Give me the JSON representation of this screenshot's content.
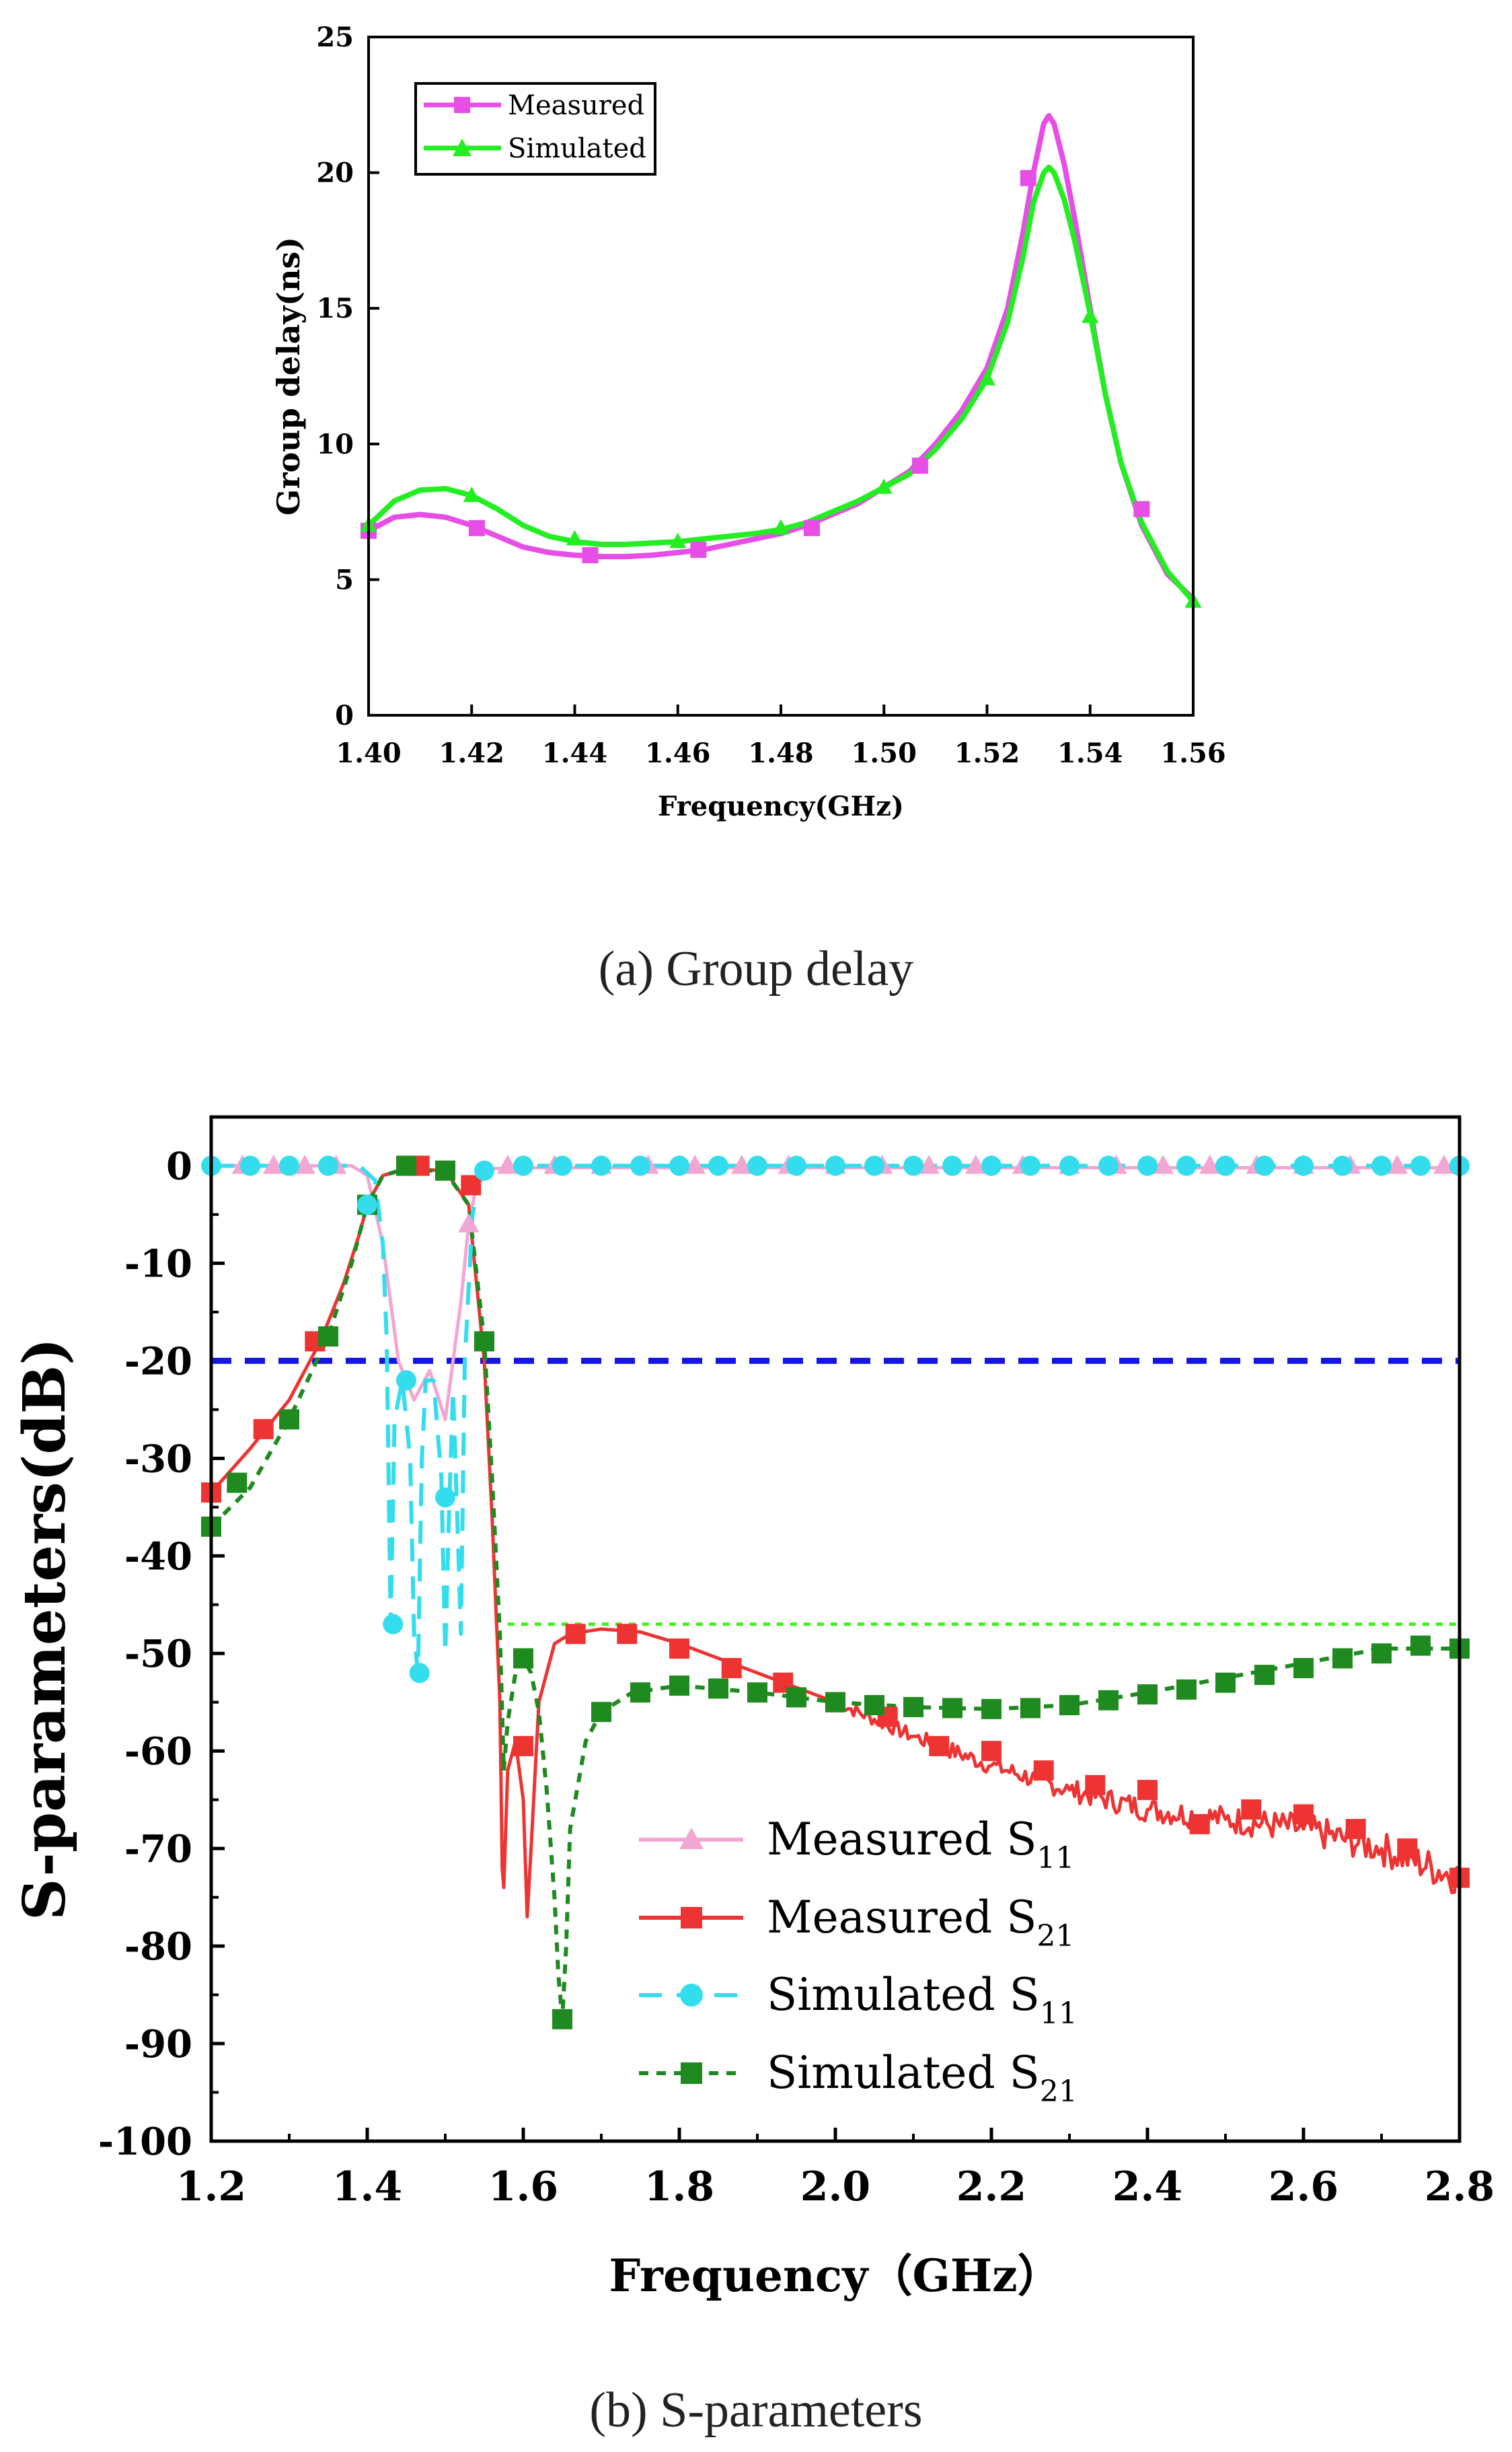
{
  "figure": {
    "caption_a": "(a) Group delay",
    "caption_b": "(b)  S-parameters"
  },
  "chart_data": [
    {
      "type": "line",
      "title": "",
      "xlabel": "Frequency(GHz)",
      "ylabel": "Group delay(ns)",
      "xlim": [
        1.4,
        1.56
      ],
      "ylim": [
        0,
        25
      ],
      "xticks": [
        "1.40",
        "1.42",
        "1.44",
        "1.46",
        "1.48",
        "1.50",
        "1.52",
        "1.54",
        "1.56"
      ],
      "yticks": [
        "0",
        "5",
        "10",
        "15",
        "20",
        "25"
      ],
      "legend_position": "top-left",
      "grid": false,
      "series": [
        {
          "name": "Measured",
          "color": "#e64ee6",
          "marker": "square",
          "x": [
            1.4,
            1.405,
            1.41,
            1.415,
            1.42,
            1.425,
            1.43,
            1.435,
            1.44,
            1.445,
            1.45,
            1.455,
            1.46,
            1.465,
            1.47,
            1.475,
            1.48,
            1.485,
            1.49,
            1.495,
            1.5,
            1.505,
            1.51,
            1.515,
            1.52,
            1.524,
            1.527,
            1.529,
            1.531,
            1.532,
            1.533,
            1.535,
            1.537,
            1.54,
            1.543,
            1.546,
            1.55,
            1.555,
            1.56
          ],
          "values": [
            6.8,
            7.3,
            7.4,
            7.3,
            7.0,
            6.6,
            6.2,
            6.0,
            5.9,
            5.85,
            5.85,
            5.9,
            6.0,
            6.1,
            6.3,
            6.5,
            6.7,
            7.0,
            7.4,
            7.8,
            8.4,
            9.0,
            10.0,
            11.2,
            12.8,
            15.0,
            17.8,
            20.0,
            21.8,
            22.1,
            21.8,
            20.3,
            18.3,
            15.0,
            11.8,
            9.3,
            7.0,
            5.2,
            4.3
          ],
          "markers": [
            [
              1.4,
              6.8
            ],
            [
              1.421,
              6.9
            ],
            [
              1.443,
              5.9
            ],
            [
              1.464,
              6.1
            ],
            [
              1.486,
              6.9
            ],
            [
              1.507,
              9.2
            ],
            [
              1.528,
              19.8
            ],
            [
              1.55,
              7.6
            ]
          ]
        },
        {
          "name": "Simulated",
          "color": "#22ee22",
          "marker": "triangle",
          "x": [
            1.4,
            1.405,
            1.41,
            1.415,
            1.42,
            1.425,
            1.43,
            1.435,
            1.44,
            1.445,
            1.45,
            1.455,
            1.46,
            1.465,
            1.47,
            1.475,
            1.48,
            1.485,
            1.49,
            1.495,
            1.5,
            1.505,
            1.51,
            1.515,
            1.52,
            1.524,
            1.527,
            1.529,
            1.531,
            1.532,
            1.533,
            1.535,
            1.537,
            1.54,
            1.543,
            1.546,
            1.55,
            1.555,
            1.56
          ],
          "values": [
            7.0,
            7.9,
            8.3,
            8.35,
            8.1,
            7.6,
            7.0,
            6.6,
            6.4,
            6.3,
            6.3,
            6.35,
            6.4,
            6.5,
            6.6,
            6.7,
            6.85,
            7.1,
            7.5,
            7.9,
            8.4,
            8.9,
            9.8,
            10.9,
            12.4,
            14.5,
            16.9,
            18.9,
            20.0,
            20.2,
            20.0,
            19.0,
            17.5,
            14.8,
            11.8,
            9.3,
            7.1,
            5.3,
            4.2
          ],
          "markers": [
            [
              1.4,
              7.0
            ],
            [
              1.42,
              8.1
            ],
            [
              1.44,
              6.5
            ],
            [
              1.46,
              6.4
            ],
            [
              1.48,
              6.9
            ],
            [
              1.5,
              8.4
            ],
            [
              1.52,
              12.4
            ],
            [
              1.54,
              14.7
            ],
            [
              1.56,
              4.2
            ]
          ]
        }
      ]
    },
    {
      "type": "line",
      "title": "",
      "xlabel": "Frequency（GHz）",
      "ylabel": "S-parameters(dB)",
      "xlim": [
        1.2,
        2.8
      ],
      "ylim": [
        -100,
        5
      ],
      "xticks": [
        "1.2",
        "1.4",
        "1.6",
        "1.8",
        "2.0",
        "2.2",
        "2.4",
        "2.6",
        "2.8"
      ],
      "yticks": [
        "0",
        "-10",
        "-20",
        "-30",
        "-40",
        "-50",
        "-60",
        "-70",
        "-80",
        "-90",
        "-100"
      ],
      "legend_position": "bottom-center",
      "grid": false,
      "reference_lines": [
        {
          "y": -20,
          "color": "#1414e6",
          "style": "dashed",
          "x_range": [
            1.2,
            2.8
          ]
        },
        {
          "y": -47,
          "color": "#44ee22",
          "style": "dotted",
          "x_range": [
            1.58,
            2.8
          ]
        }
      ],
      "series": [
        {
          "name": "Measured S",
          "subscript": "11",
          "color": "#f2a6d2",
          "marker": "triangle",
          "x": [
            1.2,
            1.38,
            1.4,
            1.42,
            1.44,
            1.46,
            1.48,
            1.5,
            1.52,
            1.53,
            1.54,
            1.56,
            1.6,
            2.8
          ],
          "values": [
            0,
            0,
            -1,
            -8,
            -20,
            -24,
            -21,
            -26,
            -14,
            -6,
            -2,
            -0.3,
            -0.2,
            -0.2
          ],
          "markers": [
            [
              1.24,
              0
            ],
            [
              1.28,
              0
            ],
            [
              1.32,
              0
            ],
            [
              1.36,
              0
            ],
            [
              1.53,
              -6
            ],
            [
              1.58,
              0
            ],
            [
              1.64,
              0
            ],
            [
              1.7,
              0
            ],
            [
              1.76,
              0
            ],
            [
              1.82,
              0
            ],
            [
              1.88,
              0
            ],
            [
              1.94,
              0
            ],
            [
              2.0,
              0
            ],
            [
              2.06,
              0
            ],
            [
              2.12,
              0
            ],
            [
              2.18,
              0
            ],
            [
              2.24,
              0
            ],
            [
              2.3,
              0
            ],
            [
              2.36,
              0
            ],
            [
              2.42,
              0
            ],
            [
              2.48,
              0
            ],
            [
              2.54,
              0
            ],
            [
              2.6,
              0
            ],
            [
              2.66,
              0
            ],
            [
              2.72,
              0
            ],
            [
              2.78,
              0
            ]
          ]
        },
        {
          "name": "Measured S",
          "subscript": "21",
          "color": "#ee3333",
          "marker": "square",
          "x": [
            1.2,
            1.25,
            1.3,
            1.34,
            1.37,
            1.39,
            1.4,
            1.42,
            1.45,
            1.5,
            1.53,
            1.55,
            1.56,
            1.57,
            1.573,
            1.575,
            1.58,
            1.59,
            1.6,
            1.605,
            1.61,
            1.62,
            1.64,
            1.66,
            1.7,
            1.75,
            1.8,
            1.9,
            2.0,
            2.1,
            2.2,
            2.3,
            2.4,
            2.5,
            2.6,
            2.7,
            2.8
          ],
          "values": [
            -33.5,
            -29,
            -24,
            -18,
            -12,
            -7,
            -4,
            -1,
            -0.3,
            -0.5,
            -4,
            -20,
            -36,
            -55,
            -72,
            -74,
            -62,
            -59,
            -65,
            -77,
            -70,
            -55,
            -49,
            -48,
            -47.5,
            -47.8,
            -49,
            -52,
            -55,
            -58.5,
            -61.5,
            -64,
            -66,
            -67,
            -68,
            -70,
            -73
          ],
          "noise_from": 2.0,
          "noise_amp": 1.6,
          "markers": [
            [
              1.2,
              -33.5
            ],
            [
              1.267,
              -27
            ],
            [
              1.333,
              -18
            ],
            [
              1.4,
              -4
            ],
            [
              1.467,
              0
            ],
            [
              1.533,
              -2
            ],
            [
              1.6,
              -59.5
            ],
            [
              1.667,
              -48
            ],
            [
              1.733,
              -48
            ],
            [
              1.8,
              -49.5
            ],
            [
              1.867,
              -51.5
            ],
            [
              1.933,
              -53
            ],
            [
              2.0,
              -55
            ],
            [
              2.067,
              -56.5
            ],
            [
              2.133,
              -59.5
            ],
            [
              2.2,
              -60
            ],
            [
              2.267,
              -62
            ],
            [
              2.333,
              -63.5
            ],
            [
              2.4,
              -64
            ],
            [
              2.467,
              -67.5
            ],
            [
              2.533,
              -66
            ],
            [
              2.6,
              -66.5
            ],
            [
              2.667,
              -68
            ],
            [
              2.733,
              -70
            ],
            [
              2.8,
              -73
            ]
          ]
        },
        {
          "name": "Simulated S",
          "subscript": "11",
          "color": "#33ddee",
          "marker": "circle",
          "x": [
            1.2,
            1.39,
            1.41,
            1.42,
            1.425,
            1.43,
            1.435,
            1.445,
            1.455,
            1.46,
            1.465,
            1.47,
            1.475,
            1.485,
            1.495,
            1.5,
            1.505,
            1.51,
            1.515,
            1.52,
            1.525,
            1.535,
            1.545,
            1.6,
            2.8
          ],
          "values": [
            0,
            0,
            -1.5,
            -8,
            -18,
            -47,
            -26,
            -22,
            -30,
            -48,
            -52,
            -30,
            -22,
            -22,
            -32,
            -50,
            -35,
            -23,
            -35,
            -48,
            -20,
            -5,
            -1,
            0,
            0
          ],
          "markers": [
            [
              1.2,
              0
            ],
            [
              1.25,
              0
            ],
            [
              1.3,
              0
            ],
            [
              1.35,
              0
            ],
            [
              1.4,
              -4
            ],
            [
              1.433,
              -47
            ],
            [
              1.45,
              -22
            ],
            [
              1.467,
              -52
            ],
            [
              1.5,
              -34
            ],
            [
              1.55,
              -0.5
            ],
            [
              1.6,
              0
            ],
            [
              1.65,
              0
            ],
            [
              1.7,
              0
            ],
            [
              1.75,
              0
            ],
            [
              1.8,
              0
            ],
            [
              1.85,
              0
            ],
            [
              1.9,
              0
            ],
            [
              1.95,
              0
            ],
            [
              2.0,
              0
            ],
            [
              2.05,
              0
            ],
            [
              2.1,
              0
            ],
            [
              2.15,
              0
            ],
            [
              2.2,
              0
            ],
            [
              2.25,
              0
            ],
            [
              2.3,
              0
            ],
            [
              2.35,
              0
            ],
            [
              2.4,
              0
            ],
            [
              2.45,
              0
            ],
            [
              2.5,
              0
            ],
            [
              2.55,
              0
            ],
            [
              2.6,
              0
            ],
            [
              2.65,
              0
            ],
            [
              2.7,
              0
            ],
            [
              2.75,
              0
            ],
            [
              2.8,
              0
            ]
          ]
        },
        {
          "name": "Simulated S",
          "subscript": "21",
          "color": "#1f8a1f",
          "marker": "square",
          "x": [
            1.2,
            1.25,
            1.3,
            1.35,
            1.38,
            1.4,
            1.42,
            1.45,
            1.5,
            1.53,
            1.55,
            1.56,
            1.57,
            1.575,
            1.58,
            1.59,
            1.6,
            1.61,
            1.62,
            1.63,
            1.64,
            1.645,
            1.65,
            1.655,
            1.66,
            1.68,
            1.7,
            1.74,
            1.8,
            1.9,
            2.0,
            2.1,
            2.2,
            2.3,
            2.4,
            2.5,
            2.6,
            2.7,
            2.8
          ],
          "values": [
            -37,
            -33,
            -26,
            -17.5,
            -10,
            -4,
            -1,
            -0.3,
            -0.6,
            -4,
            -18,
            -32,
            -48,
            -62,
            -57,
            -52,
            -50.5,
            -52,
            -56,
            -64,
            -75,
            -83,
            -87.5,
            -80,
            -68,
            -59,
            -56,
            -54,
            -53.3,
            -54,
            -55,
            -55.5,
            -55.7,
            -55.3,
            -54,
            -52.5,
            -51,
            -49.5,
            -49.5
          ],
          "markers": [
            [
              1.2,
              -37
            ],
            [
              1.233,
              -32.5
            ],
            [
              1.3,
              -26
            ],
            [
              1.35,
              -17.5
            ],
            [
              1.4,
              -4
            ],
            [
              1.45,
              0
            ],
            [
              1.5,
              -0.5
            ],
            [
              1.55,
              -18
            ],
            [
              1.6,
              -50.5
            ],
            [
              1.65,
              -87.5
            ],
            [
              1.7,
              -56
            ],
            [
              1.75,
              -54
            ],
            [
              1.8,
              -53.3
            ],
            [
              1.85,
              -53.6
            ],
            [
              1.9,
              -54
            ],
            [
              1.95,
              -54.5
            ],
            [
              2.0,
              -55
            ],
            [
              2.05,
              -55.3
            ],
            [
              2.1,
              -55.5
            ],
            [
              2.15,
              -55.6
            ],
            [
              2.2,
              -55.7
            ],
            [
              2.25,
              -55.6
            ],
            [
              2.3,
              -55.3
            ],
            [
              2.35,
              -54.8
            ],
            [
              2.4,
              -54.2
            ],
            [
              2.45,
              -53.7
            ],
            [
              2.5,
              -53
            ],
            [
              2.55,
              -52.2
            ],
            [
              2.6,
              -51.5
            ],
            [
              2.65,
              -50.5
            ],
            [
              2.7,
              -50
            ],
            [
              2.75,
              -49.2
            ],
            [
              2.8,
              -49.5
            ]
          ]
        }
      ]
    }
  ]
}
